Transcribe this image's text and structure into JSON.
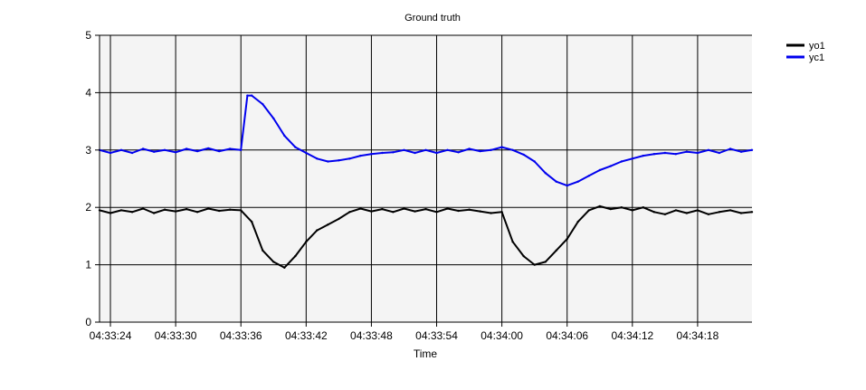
{
  "chart_data": {
    "type": "line",
    "title": "Ground truth",
    "xlabel": "Time",
    "ylabel": "",
    "xlim": [
      "04:33:23",
      "04:34:23"
    ],
    "ylim": [
      0,
      5
    ],
    "x_ticks": [
      "04:33:24",
      "04:33:30",
      "04:33:36",
      "04:33:42",
      "04:33:48",
      "04:33:54",
      "04:34:00",
      "04:34:06",
      "04:34:12",
      "04:34:18"
    ],
    "y_ticks": [
      0,
      1,
      2,
      3,
      4,
      5
    ],
    "grid": true,
    "plot_background": "#f4f4f4",
    "legend_position": "top-right",
    "series": [
      {
        "name": "yo1",
        "color": "#000000",
        "points": [
          [
            "04:33:23",
            1.95
          ],
          [
            "04:33:24",
            1.9
          ],
          [
            "04:33:25",
            1.95
          ],
          [
            "04:33:26",
            1.92
          ],
          [
            "04:33:27",
            1.98
          ],
          [
            "04:33:28",
            1.9
          ],
          [
            "04:33:29",
            1.96
          ],
          [
            "04:33:30",
            1.93
          ],
          [
            "04:33:31",
            1.97
          ],
          [
            "04:33:32",
            1.92
          ],
          [
            "04:33:33",
            1.98
          ],
          [
            "04:33:34",
            1.94
          ],
          [
            "04:33:35",
            1.96
          ],
          [
            "04:33:36",
            1.95
          ],
          [
            "04:33:37",
            1.75
          ],
          [
            "04:33:38",
            1.25
          ],
          [
            "04:33:39",
            1.05
          ],
          [
            "04:33:40",
            0.95
          ],
          [
            "04:33:41",
            1.15
          ],
          [
            "04:33:42",
            1.4
          ],
          [
            "04:33:43",
            1.6
          ],
          [
            "04:33:44",
            1.7
          ],
          [
            "04:33:45",
            1.8
          ],
          [
            "04:33:46",
            1.92
          ],
          [
            "04:33:47",
            1.98
          ],
          [
            "04:33:48",
            1.93
          ],
          [
            "04:33:49",
            1.97
          ],
          [
            "04:33:50",
            1.92
          ],
          [
            "04:33:51",
            1.98
          ],
          [
            "04:33:52",
            1.93
          ],
          [
            "04:33:53",
            1.97
          ],
          [
            "04:33:54",
            1.92
          ],
          [
            "04:33:55",
            1.98
          ],
          [
            "04:33:56",
            1.94
          ],
          [
            "04:33:57",
            1.96
          ],
          [
            "04:33:58",
            1.93
          ],
          [
            "04:33:59",
            1.9
          ],
          [
            "04:34:00",
            1.92
          ],
          [
            "04:34:01",
            1.4
          ],
          [
            "04:34:02",
            1.15
          ],
          [
            "04:34:03",
            1.0
          ],
          [
            "04:34:04",
            1.05
          ],
          [
            "04:34:05",
            1.25
          ],
          [
            "04:34:06",
            1.45
          ],
          [
            "04:34:07",
            1.75
          ],
          [
            "04:34:08",
            1.95
          ],
          [
            "04:34:09",
            2.02
          ],
          [
            "04:34:10",
            1.97
          ],
          [
            "04:34:11",
            2.0
          ],
          [
            "04:34:12",
            1.95
          ],
          [
            "04:34:13",
            2.0
          ],
          [
            "04:34:14",
            1.92
          ],
          [
            "04:34:15",
            1.88
          ],
          [
            "04:34:16",
            1.95
          ],
          [
            "04:34:17",
            1.9
          ],
          [
            "04:34:18",
            1.95
          ],
          [
            "04:34:19",
            1.88
          ],
          [
            "04:34:20",
            1.92
          ],
          [
            "04:34:21",
            1.95
          ],
          [
            "04:34:22",
            1.9
          ],
          [
            "04:34:23",
            1.92
          ]
        ]
      },
      {
        "name": "yc1",
        "color": "#0000ee",
        "points": [
          [
            "04:33:23",
            3.0
          ],
          [
            "04:33:24",
            2.95
          ],
          [
            "04:33:25",
            3.0
          ],
          [
            "04:33:26",
            2.95
          ],
          [
            "04:33:27",
            3.02
          ],
          [
            "04:33:28",
            2.97
          ],
          [
            "04:33:29",
            3.0
          ],
          [
            "04:33:30",
            2.96
          ],
          [
            "04:33:31",
            3.02
          ],
          [
            "04:33:32",
            2.98
          ],
          [
            "04:33:33",
            3.03
          ],
          [
            "04:33:34",
            2.98
          ],
          [
            "04:33:35",
            3.02
          ],
          [
            "04:33:36",
            3.0
          ],
          [
            "04:33:36.6",
            3.95
          ],
          [
            "04:33:37",
            3.95
          ],
          [
            "04:33:38",
            3.8
          ],
          [
            "04:33:39",
            3.55
          ],
          [
            "04:33:40",
            3.25
          ],
          [
            "04:33:41",
            3.05
          ],
          [
            "04:33:42",
            2.95
          ],
          [
            "04:33:43",
            2.85
          ],
          [
            "04:33:44",
            2.8
          ],
          [
            "04:33:45",
            2.82
          ],
          [
            "04:33:46",
            2.85
          ],
          [
            "04:33:47",
            2.9
          ],
          [
            "04:33:48",
            2.93
          ],
          [
            "04:33:49",
            2.95
          ],
          [
            "04:33:50",
            2.96
          ],
          [
            "04:33:51",
            3.0
          ],
          [
            "04:33:52",
            2.95
          ],
          [
            "04:33:53",
            3.0
          ],
          [
            "04:33:54",
            2.95
          ],
          [
            "04:33:55",
            3.0
          ],
          [
            "04:33:56",
            2.96
          ],
          [
            "04:33:57",
            3.02
          ],
          [
            "04:33:58",
            2.98
          ],
          [
            "04:33:59",
            3.0
          ],
          [
            "04:34:00",
            3.05
          ],
          [
            "04:34:01",
            3.0
          ],
          [
            "04:34:02",
            2.92
          ],
          [
            "04:34:03",
            2.8
          ],
          [
            "04:34:04",
            2.6
          ],
          [
            "04:34:05",
            2.45
          ],
          [
            "04:34:06",
            2.38
          ],
          [
            "04:34:07",
            2.45
          ],
          [
            "04:34:08",
            2.55
          ],
          [
            "04:34:09",
            2.65
          ],
          [
            "04:34:10",
            2.72
          ],
          [
            "04:34:11",
            2.8
          ],
          [
            "04:34:12",
            2.85
          ],
          [
            "04:34:13",
            2.9
          ],
          [
            "04:34:14",
            2.93
          ],
          [
            "04:34:15",
            2.95
          ],
          [
            "04:34:16",
            2.93
          ],
          [
            "04:34:17",
            2.97
          ],
          [
            "04:34:18",
            2.95
          ],
          [
            "04:34:19",
            3.0
          ],
          [
            "04:34:20",
            2.95
          ],
          [
            "04:34:21",
            3.02
          ],
          [
            "04:34:22",
            2.97
          ],
          [
            "04:34:23",
            3.0
          ]
        ]
      }
    ]
  }
}
